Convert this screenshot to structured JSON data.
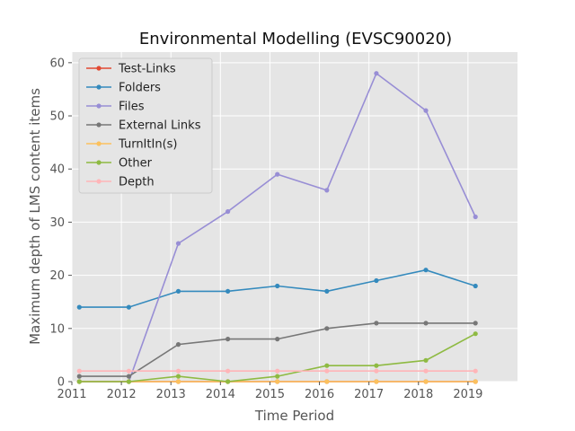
{
  "chart_data": {
    "type": "line",
    "title": "Environmental Modelling (EVSC90020)",
    "xlabel": "Time Period",
    "ylabel": "Maximum depth of LMS content items",
    "xlim": [
      2011,
      2020
    ],
    "ylim": [
      0,
      62
    ],
    "xticks": [
      "2011",
      "2012",
      "2013",
      "2014",
      "2015",
      "2016",
      "2017",
      "2018",
      "2019"
    ],
    "yticks": [
      "0",
      "10",
      "20",
      "30",
      "40",
      "50",
      "60"
    ],
    "grid": true,
    "legend_position": "upper-left",
    "x": [
      2011.15,
      2012.15,
      2013.15,
      2014.15,
      2015.15,
      2016.15,
      2017.15,
      2018.15,
      2019.15
    ],
    "series": [
      {
        "name": "Test-Links",
        "color": "#E24A33",
        "values": [
          0,
          0,
          0,
          0,
          0,
          0,
          0,
          0,
          0
        ]
      },
      {
        "name": "Folders",
        "color": "#348ABD",
        "values": [
          14,
          14,
          17,
          17,
          18,
          17,
          19,
          21,
          18
        ]
      },
      {
        "name": "Files",
        "color": "#988ED5",
        "values": [
          0,
          0,
          26,
          32,
          39,
          36,
          58,
          51,
          31
        ]
      },
      {
        "name": "External Links",
        "color": "#777777",
        "values": [
          1,
          1,
          7,
          8,
          8,
          10,
          11,
          11,
          11
        ]
      },
      {
        "name": "TurnItIn(s)",
        "color": "#FBC15E",
        "values": [
          0,
          0,
          0,
          0,
          0,
          0,
          0,
          0,
          0
        ]
      },
      {
        "name": "Other",
        "color": "#8EBA42",
        "values": [
          0,
          0,
          1,
          0,
          1,
          3,
          3,
          4,
          9
        ]
      },
      {
        "name": "Depth",
        "color": "#FFB5B8",
        "values": [
          2,
          2,
          2,
          2,
          2,
          2,
          2,
          2,
          2
        ]
      }
    ]
  }
}
